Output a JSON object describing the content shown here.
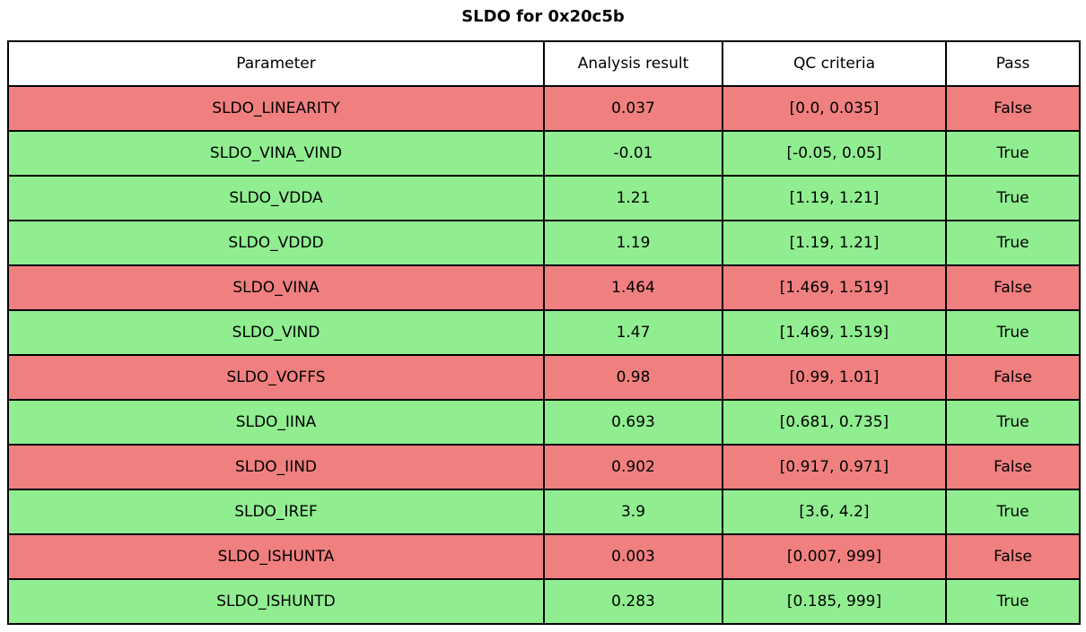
{
  "title": "SLDO for 0x20c5b",
  "colors": {
    "pass_row": "#90ee90",
    "fail_row": "#f08080",
    "header_bg": "#ffffff",
    "border": "#000000",
    "text": "#000000"
  },
  "table": {
    "headers": [
      "Parameter",
      "Analysis result",
      "QC criteria",
      "Pass"
    ],
    "rows": [
      {
        "parameter": "SLDO_LINEARITY",
        "result": "0.037",
        "criteria": "[0.0, 0.035]",
        "pass": "False",
        "status": "fail"
      },
      {
        "parameter": "SLDO_VINA_VIND",
        "result": "-0.01",
        "criteria": "[-0.05, 0.05]",
        "pass": "True",
        "status": "pass"
      },
      {
        "parameter": "SLDO_VDDA",
        "result": "1.21",
        "criteria": "[1.19, 1.21]",
        "pass": "True",
        "status": "pass"
      },
      {
        "parameter": "SLDO_VDDD",
        "result": "1.19",
        "criteria": "[1.19, 1.21]",
        "pass": "True",
        "status": "pass"
      },
      {
        "parameter": "SLDO_VINA",
        "result": "1.464",
        "criteria": "[1.469, 1.519]",
        "pass": "False",
        "status": "fail"
      },
      {
        "parameter": "SLDO_VIND",
        "result": "1.47",
        "criteria": "[1.469, 1.519]",
        "pass": "True",
        "status": "pass"
      },
      {
        "parameter": "SLDO_VOFFS",
        "result": "0.98",
        "criteria": "[0.99, 1.01]",
        "pass": "False",
        "status": "fail"
      },
      {
        "parameter": "SLDO_IINA",
        "result": "0.693",
        "criteria": "[0.681, 0.735]",
        "pass": "True",
        "status": "pass"
      },
      {
        "parameter": "SLDO_IIND",
        "result": "0.902",
        "criteria": "[0.917, 0.971]",
        "pass": "False",
        "status": "fail"
      },
      {
        "parameter": "SLDO_IREF",
        "result": "3.9",
        "criteria": "[3.6, 4.2]",
        "pass": "True",
        "status": "pass"
      },
      {
        "parameter": "SLDO_ISHUNTA",
        "result": "0.003",
        "criteria": "[0.007, 999]",
        "pass": "False",
        "status": "fail"
      },
      {
        "parameter": "SLDO_ISHUNTD",
        "result": "0.283",
        "criteria": "[0.185, 999]",
        "pass": "True",
        "status": "pass"
      }
    ]
  },
  "chart_data": {
    "type": "table",
    "title": "SLDO for 0x20c5b",
    "columns": [
      "Parameter",
      "Analysis result",
      "QC criteria",
      "Pass"
    ],
    "rows": [
      [
        "SLDO_LINEARITY",
        0.037,
        "[0.0, 0.035]",
        "False"
      ],
      [
        "SLDO_VINA_VIND",
        -0.01,
        "[-0.05, 0.05]",
        "True"
      ],
      [
        "SLDO_VDDA",
        1.21,
        "[1.19, 1.21]",
        "True"
      ],
      [
        "SLDO_VDDD",
        1.19,
        "[1.19, 1.21]",
        "True"
      ],
      [
        "SLDO_VINA",
        1.464,
        "[1.469, 1.519]",
        "False"
      ],
      [
        "SLDO_VIND",
        1.47,
        "[1.469, 1.519]",
        "True"
      ],
      [
        "SLDO_VOFFS",
        0.98,
        "[0.99, 1.01]",
        "False"
      ],
      [
        "SLDO_IINA",
        0.693,
        "[0.681, 0.735]",
        "True"
      ],
      [
        "SLDO_IIND",
        0.902,
        "[0.917, 0.971]",
        "False"
      ],
      [
        "SLDO_IREF",
        3.9,
        "[3.6, 4.2]",
        "True"
      ],
      [
        "SLDO_ISHUNTA",
        0.003,
        "[0.007, 999]",
        "False"
      ],
      [
        "SLDO_ISHUNTD",
        0.283,
        "[0.185, 999]",
        "True"
      ]
    ],
    "row_status": [
      "fail",
      "pass",
      "pass",
      "pass",
      "fail",
      "pass",
      "fail",
      "pass",
      "fail",
      "pass",
      "fail",
      "pass"
    ],
    "layout_hints": {
      "row_coloring": "green when Pass is True, red when Pass is False",
      "header_background": "white",
      "grid": "black cell borders"
    }
  }
}
